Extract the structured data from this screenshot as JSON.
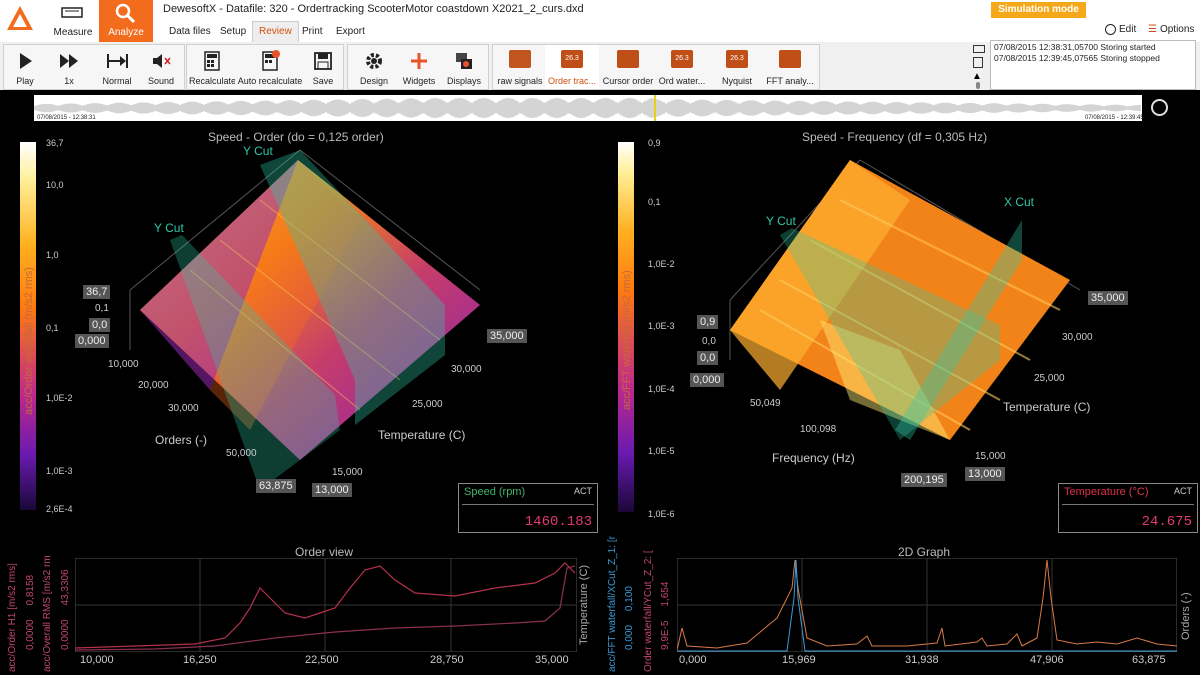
{
  "app": {
    "title": "DewesoftX - Datafile: 320 - Ordertracking ScooterMotor coastdown X2021_2_curs.dxd",
    "mode_measure": "Measure",
    "mode_analyze": "Analyze",
    "simulation_mode": "Simulation mode",
    "edit": "Edit",
    "options": "Options",
    "colors": {
      "accent": "#f36c1d",
      "simulation": "#f6a81b",
      "cut_plane": "#2fc9a5"
    }
  },
  "tabs": [
    "Data files",
    "Setup",
    "Review",
    "Print",
    "Export"
  ],
  "toolbar": {
    "play": "Play",
    "speed": "1x",
    "normal": "Normal",
    "sound": "Sound",
    "recalculate": "Recalculate",
    "auto_recalculate": "Auto recalculate",
    "save": "Save",
    "design": "Design",
    "widgets": "Widgets",
    "displays": "Displays",
    "screens": [
      "raw signals",
      "Order trac...",
      "Cursor order",
      "Ord water...",
      "Nyquist",
      "FFT analy..."
    ],
    "thumb_text": "26.3"
  },
  "log": [
    "07/08/2015 12:38:31,05700 Storing started",
    "07/08/2015 12:39:45,07565 Storing stopped"
  ],
  "overview": {
    "start": "07/08/2015 - 12:38:31",
    "end": "07/08/2015 - 12:39:45"
  },
  "left_plot": {
    "title": "Speed - Order (do = 0,125 order)",
    "colorbar_label": "acc/Order waterfall (m/s2 rms)",
    "colorbar_ticks": [
      "36,7",
      "10,0",
      "1,0",
      "0,1",
      "1,0E-2",
      "1,0E-3",
      "2,6E-4"
    ],
    "z_tags": [
      "36,7",
      "0,1",
      "0,0",
      "0,000"
    ],
    "cut1": "Y Cut",
    "cut2": "Y Cut",
    "x_axis": "Orders (-)",
    "x_ticks": [
      "10,000",
      "20,000",
      "30,000",
      "50,000"
    ],
    "x_end": "63,875",
    "y_axis": "Temperature (C)",
    "y_ticks": [
      "30,000",
      "25,000",
      "15,000"
    ],
    "y_start": "13,000",
    "y_end": "35,000",
    "readout": {
      "label": "Speed (rpm)",
      "act": "ACT",
      "value": "1460.183"
    }
  },
  "right_plot": {
    "title": "Speed - Frequency (df = 0,305 Hz)",
    "colorbar_label": "acc/FFT waterfall (m/s2 rms)",
    "colorbar_ticks": [
      "0,9",
      "0,1",
      "1,0E-2",
      "1,0E-3",
      "1,0E-4",
      "1,0E-5",
      "1,0E-6"
    ],
    "z_tags": [
      "0,9",
      "0,0",
      "0,0",
      "0,000"
    ],
    "cut1": "Y Cut",
    "cut2": "X Cut",
    "x_axis": "Frequency (Hz)",
    "x_ticks": [
      "50,049",
      "100,098"
    ],
    "x_end": "200,195",
    "y_axis": "Temperature (C)",
    "y_ticks": [
      "30,000",
      "25,000",
      "15,000"
    ],
    "y_start": "13,000",
    "y_end": "35,000",
    "readout": {
      "label": "Temperature (°C)",
      "act": "ACT",
      "value": "24.675"
    }
  },
  "order_view": {
    "title": "Order view",
    "y1_label": "acc/Order H1 [m/s2 rms]",
    "y1_ticks": [
      "0,0000",
      "0,8158"
    ],
    "y2_label": "acc/Overall RMS [m/s2 rm",
    "y2_ticks": [
      "0,0000",
      "43,3306"
    ],
    "x_ticks": [
      "10,000",
      "16,250",
      "22,500",
      "28,750",
      "35,000"
    ],
    "right_label": "Temperature (C)"
  },
  "graph_2d": {
    "title": "2D Graph",
    "y1_label": "acc/FFT waterfall/XCut_Z_1: [r",
    "y1_ticks": [
      "0,000",
      "0,100"
    ],
    "y2_label": "Order waterfall/YCut_Z_2: [",
    "y2_ticks": [
      "9,9E-5",
      "1,654"
    ],
    "x_ticks": [
      "0,000",
      "15,969",
      "31,938",
      "47,906",
      "63,875"
    ],
    "right_label": "Orders (-)"
  }
}
